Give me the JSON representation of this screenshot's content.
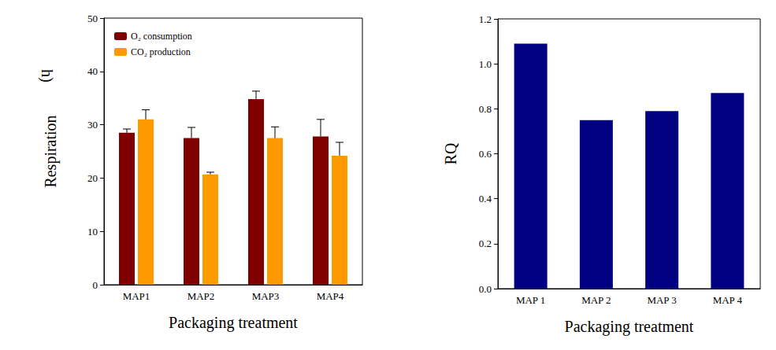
{
  "chart_data": [
    {
      "type": "bar",
      "categories": [
        "MAP1",
        "MAP2",
        "MAP3",
        "MAP4"
      ],
      "series": [
        {
          "name": "O₂ consumption",
          "color": "#800000",
          "values": [
            28.5,
            27.5,
            34.8,
            27.8
          ],
          "errors": [
            0.7,
            2.0,
            1.5,
            3.2
          ]
        },
        {
          "name": "CO₂ production",
          "color": "#ff9900",
          "values": [
            31.0,
            20.7,
            27.5,
            24.2
          ],
          "errors": [
            1.8,
            0.4,
            2.1,
            2.5
          ]
        }
      ],
      "xlabel": "Packaging treatment",
      "ylabel": "Respiration",
      "annotations": [
        "h)"
      ],
      "ylim": [
        0,
        50
      ],
      "yticks": [
        0,
        10,
        20,
        30,
        40,
        50
      ],
      "legend": "upper left",
      "grid": false
    },
    {
      "type": "bar",
      "categories": [
        "MAP 1",
        "MAP 2",
        "MAP 3",
        "MAP 4"
      ],
      "values": [
        1.09,
        0.75,
        0.79,
        0.87
      ],
      "color": "#000080",
      "xlabel": "Packaging treatment",
      "ylabel": "RQ",
      "ylim": [
        0,
        1.2
      ],
      "yticks": [
        {
          "value": 0,
          "label": "0.0"
        },
        0.2,
        0.4,
        0.6,
        0.8,
        {
          "value": 1,
          "label": "1.0"
        },
        1.2
      ],
      "grid": false
    }
  ]
}
